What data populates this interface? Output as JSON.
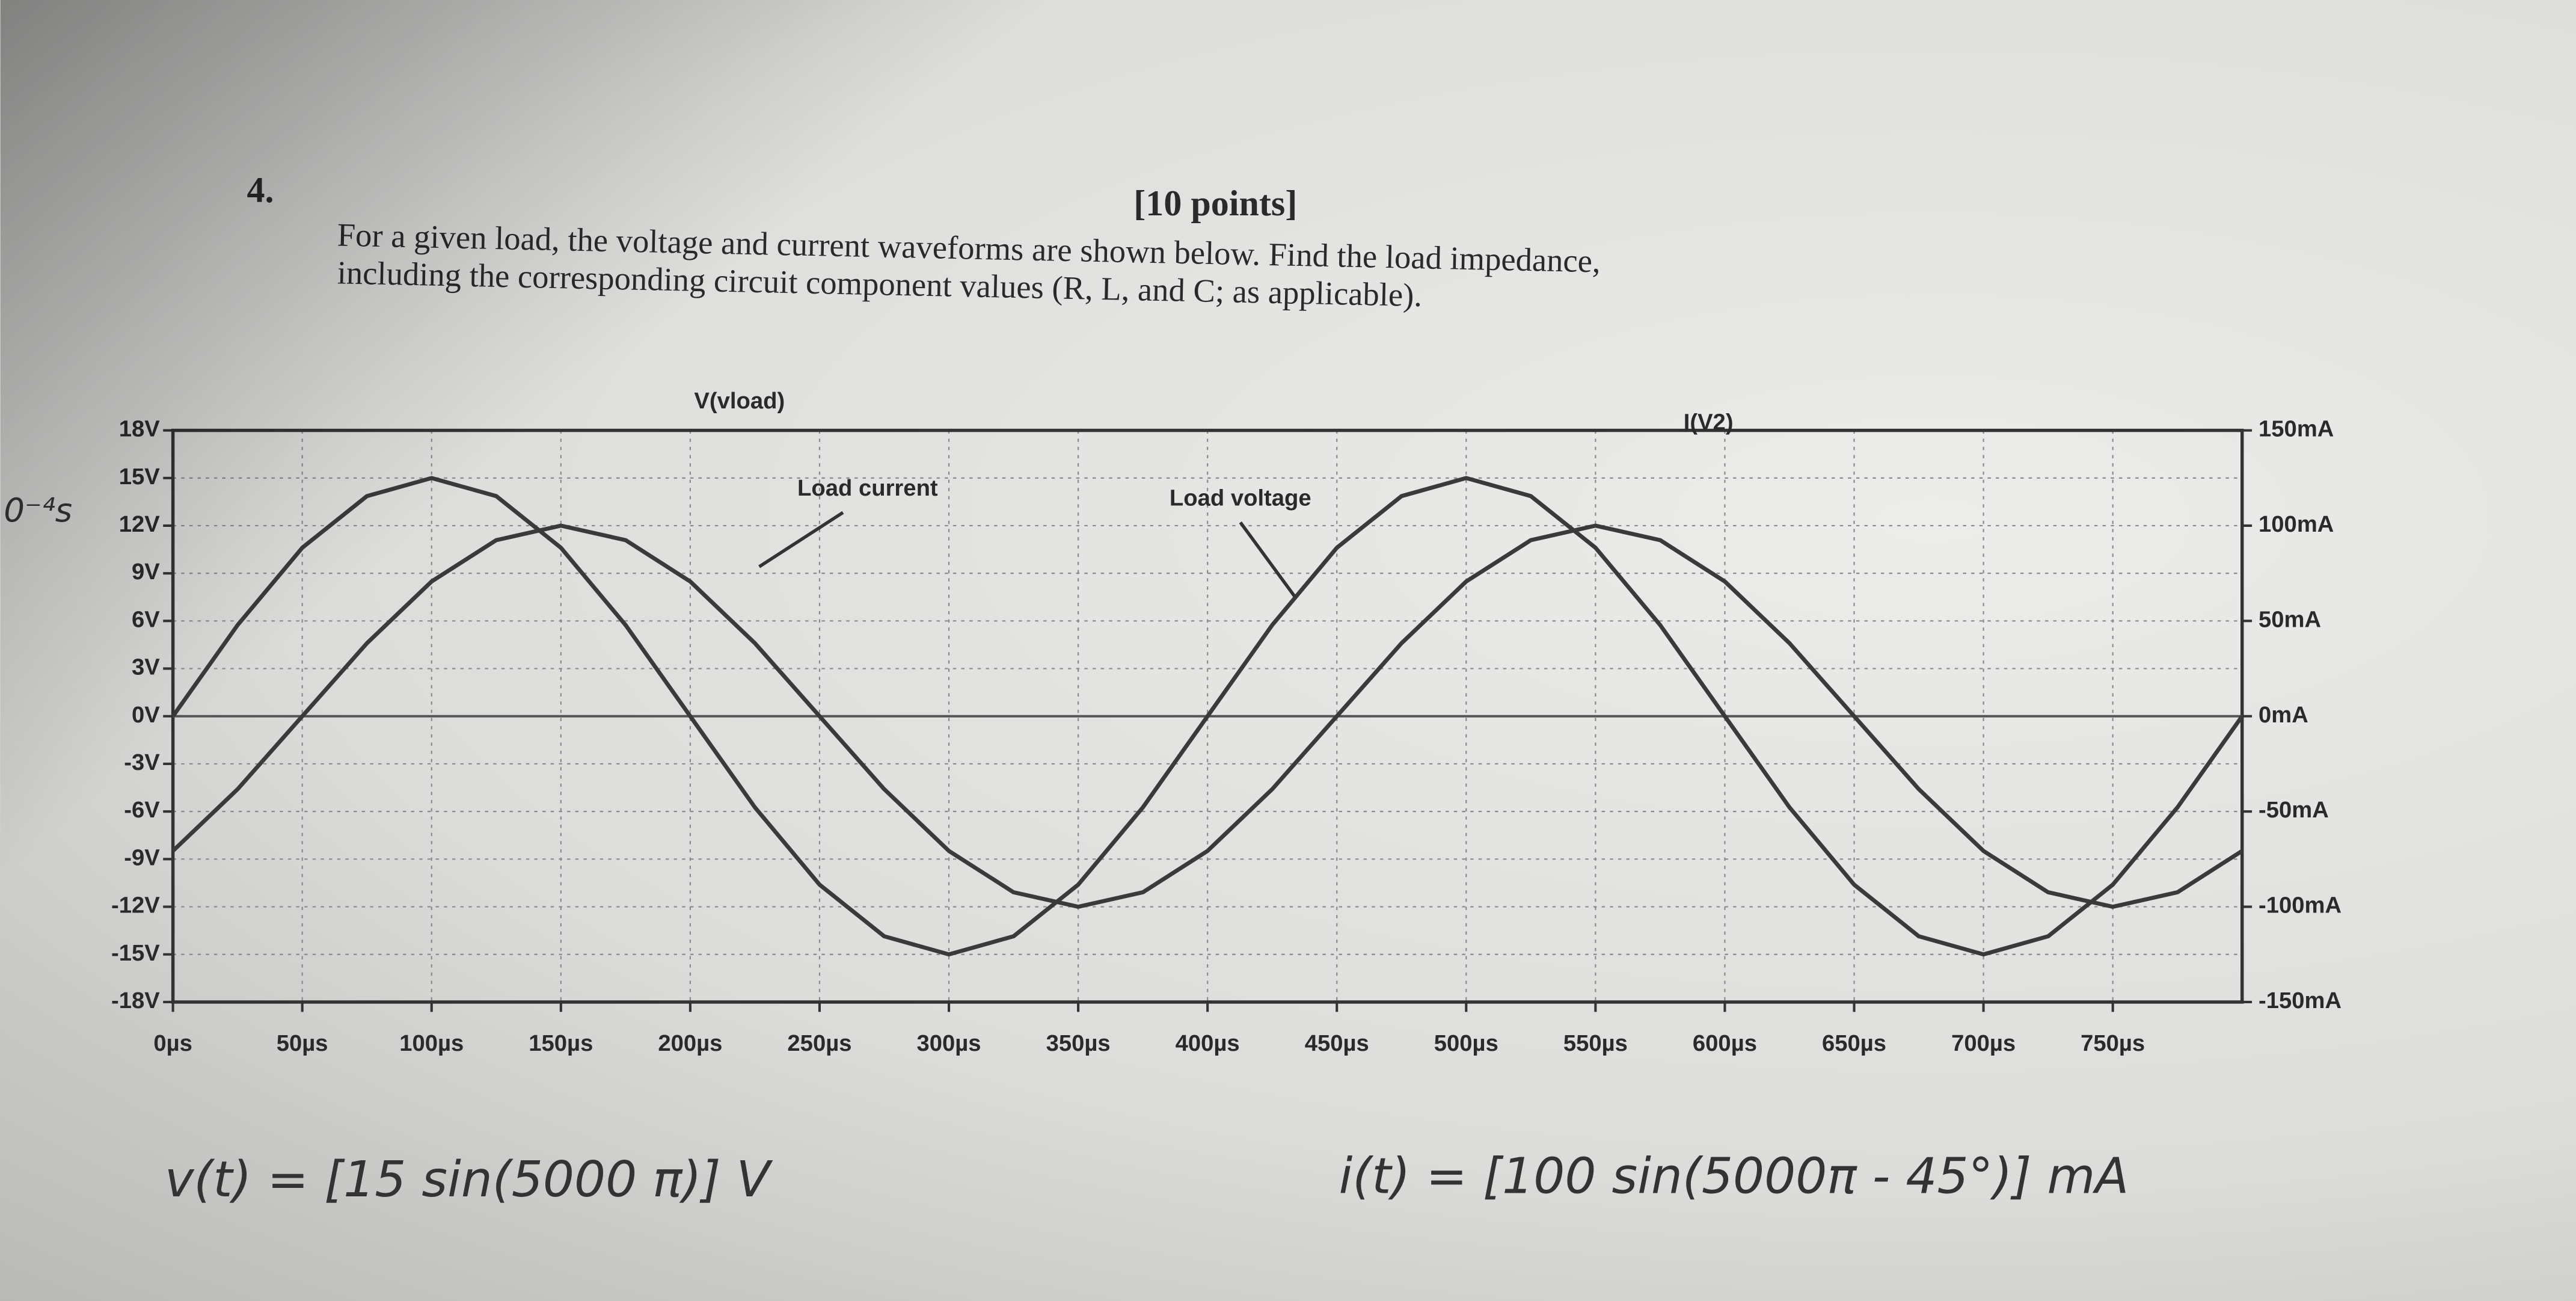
{
  "question": {
    "number": "4.",
    "points": "[10 points]",
    "lines": [
      "For a given load, the voltage and current waveforms are shown below. Find the load impedance,",
      "including the corresponding circuit component values (R, L, and C; as applicable)."
    ]
  },
  "handwritten": {
    "margin_note": "0⁻⁴s",
    "voltage": "v(t) = [15 sin(5000 π)] V",
    "current": "i(t) = [100 sin(5000π - 45°)] mA"
  },
  "chart_data": {
    "type": "line",
    "annotations": [
      "Load current",
      "Load voltage"
    ],
    "x": [
      0,
      25,
      50,
      75,
      100,
      125,
      150,
      175,
      200,
      225,
      250,
      275,
      300,
      325,
      350,
      375,
      400,
      425,
      450,
      475,
      500,
      525,
      550,
      575,
      600,
      625,
      650,
      675,
      700,
      725,
      750,
      775,
      800
    ],
    "series": [
      {
        "name": "V(vload)",
        "color": "#3a3a3a",
        "values": [
          0,
          5.74,
          10.61,
          13.86,
          15,
          13.86,
          10.61,
          5.74,
          0,
          -5.74,
          -10.61,
          -13.86,
          -15,
          -13.86,
          -10.61,
          -5.74,
          0,
          5.74,
          10.61,
          13.86,
          15,
          13.86,
          10.61,
          5.74,
          0,
          -5.74,
          -10.61,
          -13.86,
          -15,
          -13.86,
          -10.61,
          -5.74,
          0
        ]
      },
      {
        "name": "I(V2)",
        "color": "#3a3a3a",
        "axis": "y2",
        "values": [
          -70.7,
          -38.3,
          0,
          38.3,
          70.7,
          92.4,
          100,
          92.4,
          70.7,
          38.3,
          0,
          -38.3,
          -70.7,
          -92.4,
          -100,
          -92.4,
          -70.7,
          -38.3,
          0,
          38.3,
          70.7,
          92.4,
          100,
          92.4,
          70.7,
          38.3,
          0,
          -38.3,
          -70.7,
          -92.4,
          -100,
          -92.4,
          -70.7
        ]
      }
    ],
    "xlim": [
      0,
      800
    ],
    "xticks": [
      {
        "value": 0,
        "label": "0µs"
      },
      {
        "value": 50,
        "label": "50µs"
      },
      {
        "value": 100,
        "label": "100µs"
      },
      {
        "value": 150,
        "label": "150µs"
      },
      {
        "value": 200,
        "label": "200µs"
      },
      {
        "value": 250,
        "label": "250µs"
      },
      {
        "value": 300,
        "label": "300µs"
      },
      {
        "value": 350,
        "label": "350µs"
      },
      {
        "value": 400,
        "label": "400µs"
      },
      {
        "value": 450,
        "label": "450µs"
      },
      {
        "value": 500,
        "label": "500µs"
      },
      {
        "value": 550,
        "label": "550µs"
      },
      {
        "value": 600,
        "label": "600µs"
      },
      {
        "value": 650,
        "label": "650µs"
      },
      {
        "value": 700,
        "label": "700µs"
      },
      {
        "value": 750,
        "label": "750µs"
      }
    ],
    "ylim": [
      -18,
      18
    ],
    "yticks": [
      {
        "value": 18,
        "label": "18V"
      },
      {
        "value": 15,
        "label": "15V"
      },
      {
        "value": 12,
        "label": "12V"
      },
      {
        "value": 9,
        "label": "9V"
      },
      {
        "value": 6,
        "label": "6V"
      },
      {
        "value": 3,
        "label": "3V"
      },
      {
        "value": 0,
        "label": "0V"
      },
      {
        "value": -3,
        "label": "-3V"
      },
      {
        "value": -6,
        "label": "-6V"
      },
      {
        "value": -9,
        "label": "-9V"
      },
      {
        "value": -12,
        "label": "-12V"
      },
      {
        "value": -15,
        "label": "-15V"
      },
      {
        "value": -18,
        "label": "-18V"
      }
    ],
    "y2lim": [
      -150,
      150
    ],
    "y2ticks": [
      {
        "value": 150,
        "label": "150mA"
      },
      {
        "value": 100,
        "label": "100mA"
      },
      {
        "value": 50,
        "label": "50mA"
      },
      {
        "value": 0,
        "label": "0mA"
      },
      {
        "value": -50,
        "label": "-50mA"
      },
      {
        "value": -100,
        "label": "-100mA"
      },
      {
        "value": -150,
        "label": "-150mA"
      }
    ],
    "grid": true
  }
}
